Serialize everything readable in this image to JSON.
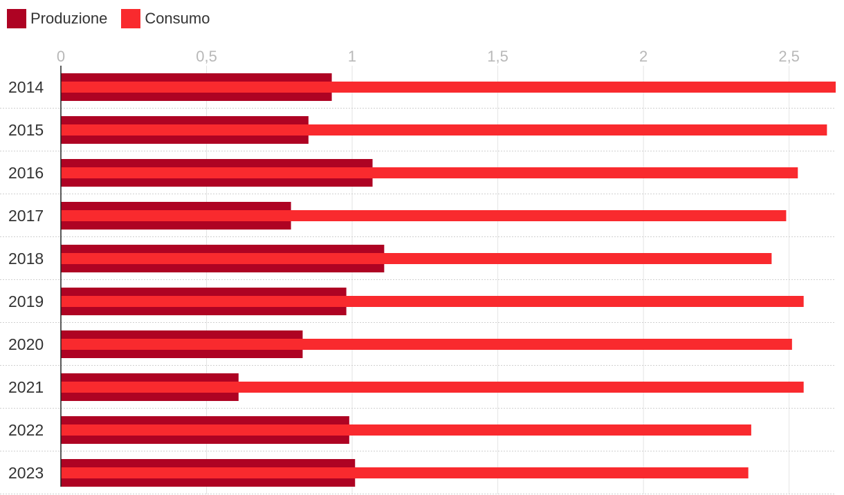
{
  "colors": {
    "produzione": "#AE0323",
    "consumo": "#F92A2E",
    "grid": "#E4E4E4",
    "row_separator": "#CFCFCF",
    "axis": "#222222",
    "tick_text": "#B8B8B8",
    "category_text": "#333333"
  },
  "legend": {
    "produzione_label": "Produzione",
    "consumo_label": "Consumo"
  },
  "chart_data": {
    "type": "bar",
    "orientation": "horizontal",
    "categories": [
      "2014",
      "2015",
      "2016",
      "2017",
      "2018",
      "2019",
      "2020",
      "2021",
      "2022",
      "2023"
    ],
    "series": [
      {
        "name": "Produzione",
        "values": [
          0.93,
          0.85,
          1.07,
          0.79,
          1.11,
          0.98,
          0.83,
          0.61,
          0.99,
          1.01
        ]
      },
      {
        "name": "Consumo",
        "values": [
          2.66,
          2.63,
          2.53,
          2.49,
          2.44,
          2.55,
          2.51,
          2.55,
          2.37,
          2.36
        ]
      }
    ],
    "xticks": [
      0,
      0.5,
      1,
      1.5,
      2,
      2.5
    ],
    "xtick_labels": [
      "0",
      "0,5",
      "1",
      "1,5",
      "2",
      "2,5"
    ],
    "xlim": [
      0,
      2.66
    ],
    "grid": true,
    "legend_position": "top-left",
    "title": "",
    "xlabel": "",
    "ylabel": ""
  }
}
